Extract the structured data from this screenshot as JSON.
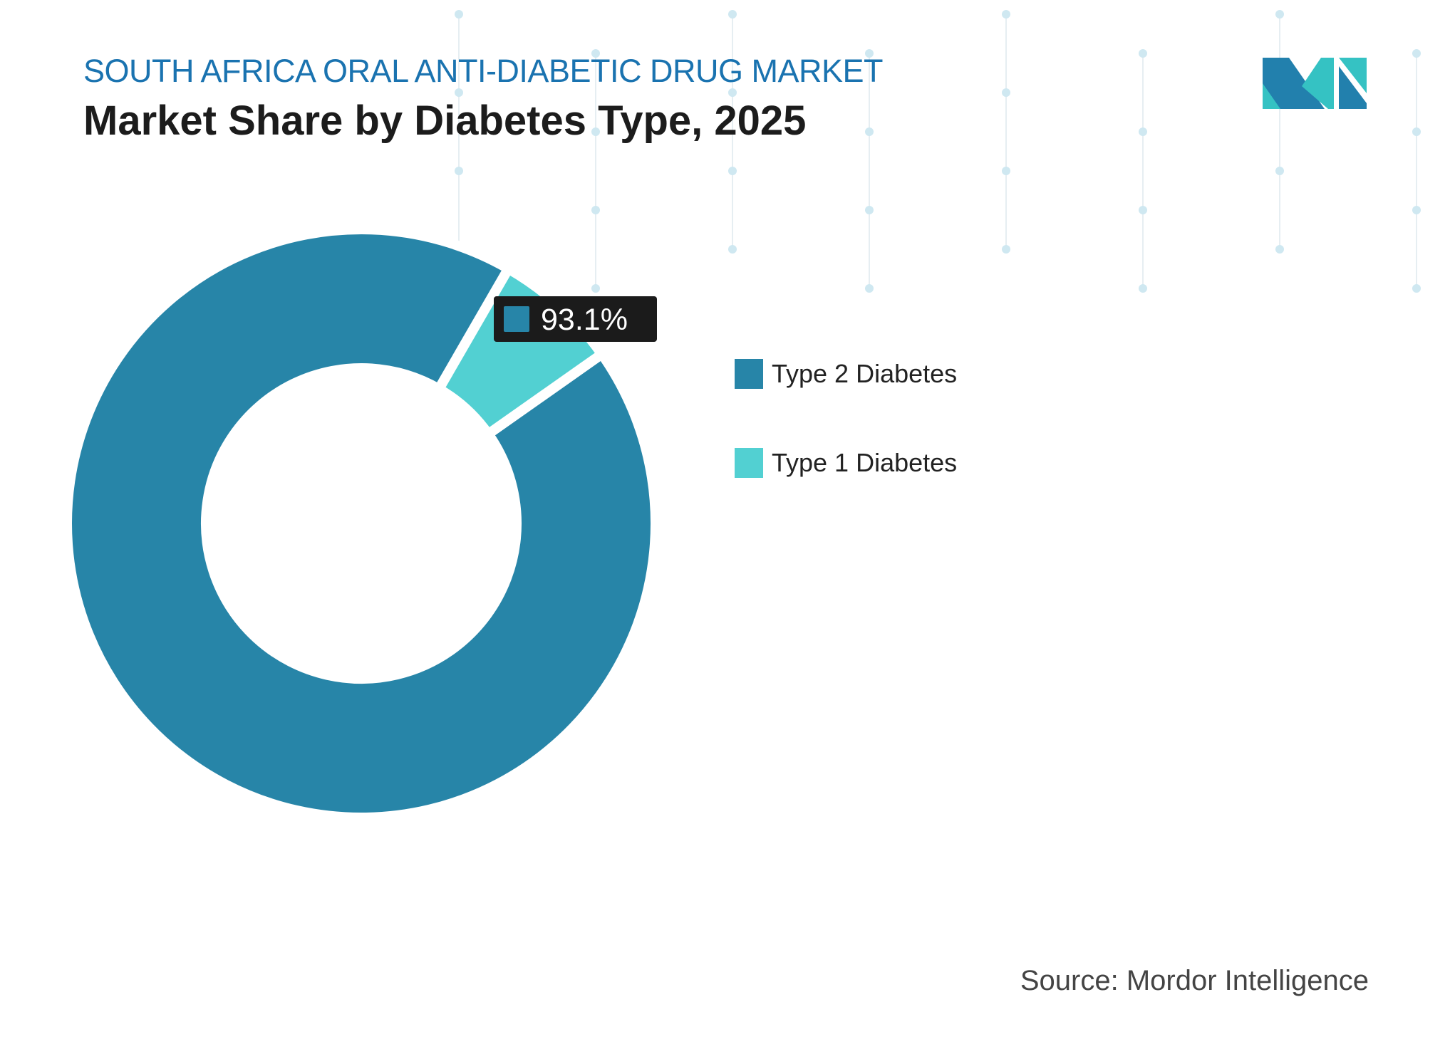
{
  "header": {
    "title": "SOUTH AFRICA ORAL ANTI-DIABETIC DRUG MARKET",
    "subtitle": "Market Share by Diabetes Type, 2025"
  },
  "chart_data": {
    "type": "pie",
    "variant": "donut",
    "title": "Market Share by Diabetes Type, 2025",
    "categories": [
      "Type 2 Diabetes",
      "Type 1 Diabetes"
    ],
    "values": [
      93.1,
      6.9
    ],
    "unit": "%",
    "colors": [
      "#2785a8",
      "#52d0d2"
    ],
    "data_labels": [
      {
        "category": "Type 2 Diabetes",
        "text": "93.1%"
      }
    ],
    "legend_placement": "right"
  },
  "legend": {
    "items": [
      {
        "label": "Type 2 Diabetes",
        "color": "#2785a8"
      },
      {
        "label": "Type 1 Diabetes",
        "color": "#52d0d2"
      }
    ]
  },
  "tooltip": {
    "value": "93.1%",
    "color": "#2785a8"
  },
  "footer": {
    "source": "Source: Mordor Intelligence"
  },
  "logo": {
    "text": "MI",
    "colors": [
      "#2280ad",
      "#35c2c3"
    ]
  }
}
